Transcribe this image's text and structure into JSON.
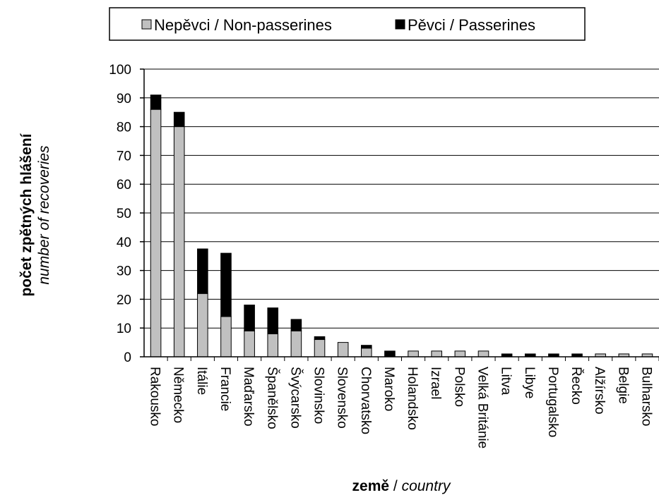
{
  "chart_data": {
    "type": "bar",
    "stacked": true,
    "categories": [
      "Rakousko",
      "Německo",
      "Itálie",
      "Francie",
      "Maďarsko",
      "Španělsko",
      "Švýcarsko",
      "Slovinsko",
      "Slovensko",
      "Chorvatsko",
      "Maroko",
      "Holandsko",
      "Izrael",
      "Polsko",
      "Velká Británie",
      "Litva",
      "Libye",
      "Portugalsko",
      "Řecko",
      "Alžírsko",
      "Belgie",
      "Bulharsko"
    ],
    "series": [
      {
        "name": "Nepěvci / Non-passerines",
        "color": "#c0c0c0",
        "values": [
          86,
          80,
          22,
          14,
          9,
          8,
          9,
          6,
          5,
          3,
          0,
          2,
          2,
          2,
          2,
          0,
          0,
          0,
          0,
          1,
          1,
          1
        ]
      },
      {
        "name": "Pěvci / Passerines",
        "color": "#000000",
        "values": [
          5,
          5,
          15.5,
          22,
          9,
          9,
          4,
          1,
          0,
          1,
          2,
          0,
          0,
          0,
          0,
          1,
          1,
          1,
          1,
          0,
          0,
          0
        ]
      }
    ],
    "ylim": [
      0,
      100
    ],
    "yticks": [
      0,
      10,
      20,
      30,
      40,
      50,
      60,
      70,
      80,
      90,
      100
    ],
    "grid": true,
    "legend_position": "top",
    "xlabel": {
      "bold": "země",
      "separator": " / ",
      "italic": "country"
    },
    "ylabel": {
      "bold": "počet zpětných hlášení",
      "italic": "number of recoveries"
    }
  }
}
